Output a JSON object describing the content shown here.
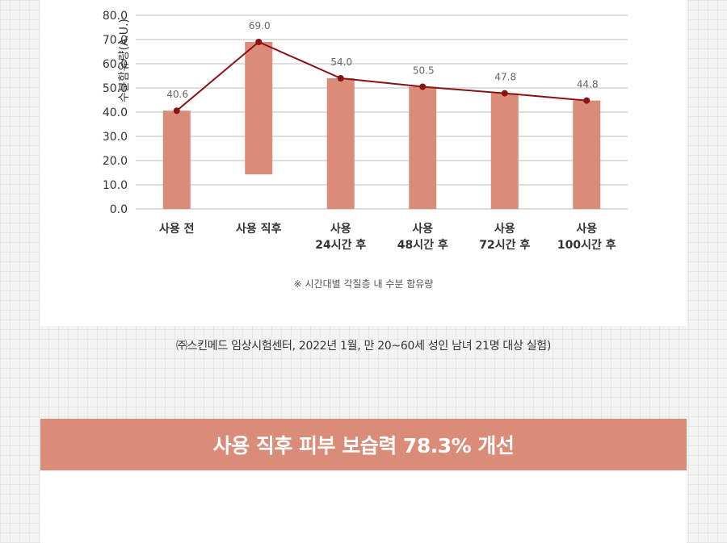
{
  "chart_data": {
    "type": "bar",
    "ylabel": "수분함유량(A.U.)",
    "ylim": [
      0,
      80
    ],
    "yticks": [
      "0.0",
      "10.0",
      "20.0",
      "30.0",
      "40.0",
      "50.0",
      "60.0",
      "70.0",
      "80.0"
    ],
    "categories": [
      [
        "사용 전"
      ],
      [
        "사용 직후"
      ],
      [
        "사용",
        "24시간 후"
      ],
      [
        "사용",
        "48시간 후"
      ],
      [
        "사용",
        "72시간 후"
      ],
      [
        "사용",
        "100시간 후"
      ]
    ],
    "series": [
      {
        "values": [
          40.6,
          69.0,
          54.0,
          50.5,
          47.8,
          44.8
        ],
        "bar_base": [
          0,
          14.3,
          0,
          0,
          0,
          0
        ]
      }
    ],
    "data_labels": [
      "40.6",
      "69.0",
      "54.0",
      "50.5",
      "47.8",
      "44.8"
    ],
    "grid": true,
    "bar_color": "#db8c78",
    "line_color": "#8b1212"
  },
  "footnote": "※ 시간대별 각질층 내 수분 함유량",
  "source_note": "㈜스킨메드 임상시험센터, 2022년 1월, 만 20~60세 성인 남녀 21명 대상 실험)",
  "banner": "사용 직후 피부 보습력 78.3% 개선"
}
